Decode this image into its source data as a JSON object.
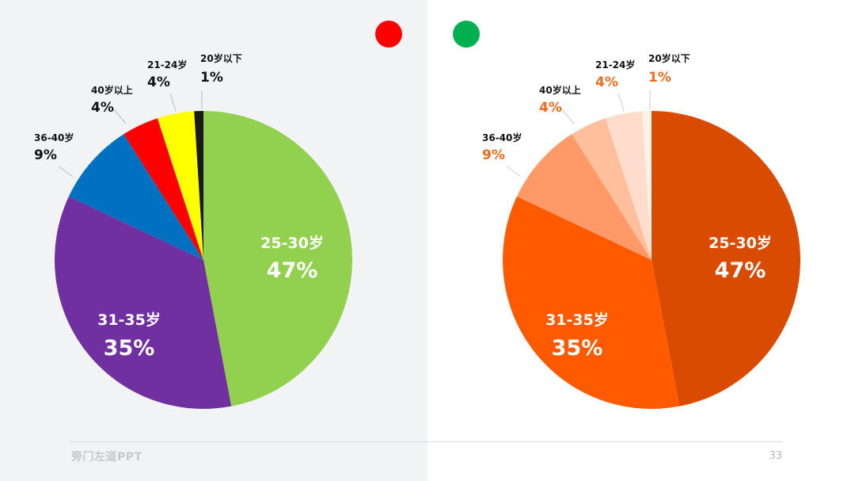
{
  "chart_data": [
    {
      "type": "pie",
      "title": "",
      "slices": [
        {
          "label": "25-30岁",
          "value": 47,
          "display": "47%",
          "color": "#92d050"
        },
        {
          "label": "31-35岁",
          "value": 35,
          "display": "35%",
          "color": "#7030a0"
        },
        {
          "label": "36-40岁",
          "value": 9,
          "display": "9%",
          "color": "#0070c0"
        },
        {
          "label": "40岁以上",
          "value": 4,
          "display": "4%",
          "color": "#ff0000"
        },
        {
          "label": "21-24岁",
          "value": 4,
          "display": "4%",
          "color": "#ffff00"
        },
        {
          "label": "20岁以下",
          "value": 1,
          "display": "1%",
          "color": "#1a1a1a"
        }
      ]
    },
    {
      "type": "pie",
      "title": "",
      "slices": [
        {
          "label": "25-30岁",
          "value": 47,
          "display": "47%",
          "color": "#d94b00"
        },
        {
          "label": "31-35岁",
          "value": 35,
          "display": "35%",
          "color": "#ff5a00"
        },
        {
          "label": "36-40岁",
          "value": 9,
          "display": "9%",
          "color": "#ff9a68"
        },
        {
          "label": "40岁以上",
          "value": 4,
          "display": "4%",
          "color": "#ffbe9c"
        },
        {
          "label": "21-24岁",
          "value": 4,
          "display": "4%",
          "color": "#ffdccb"
        },
        {
          "label": "20岁以下",
          "value": 1,
          "display": "1%",
          "color": "#fff0e8"
        }
      ]
    }
  ],
  "markers": {
    "bad_color": "#ff0000",
    "good_color": "#00b050"
  },
  "footer": {
    "brand": "旁门左道PPT",
    "page_number": "33"
  },
  "colors": {
    "inner_label": "#ffffff",
    "outer_label_left": "#111111",
    "outer_percent_right": "#f26a1b"
  }
}
